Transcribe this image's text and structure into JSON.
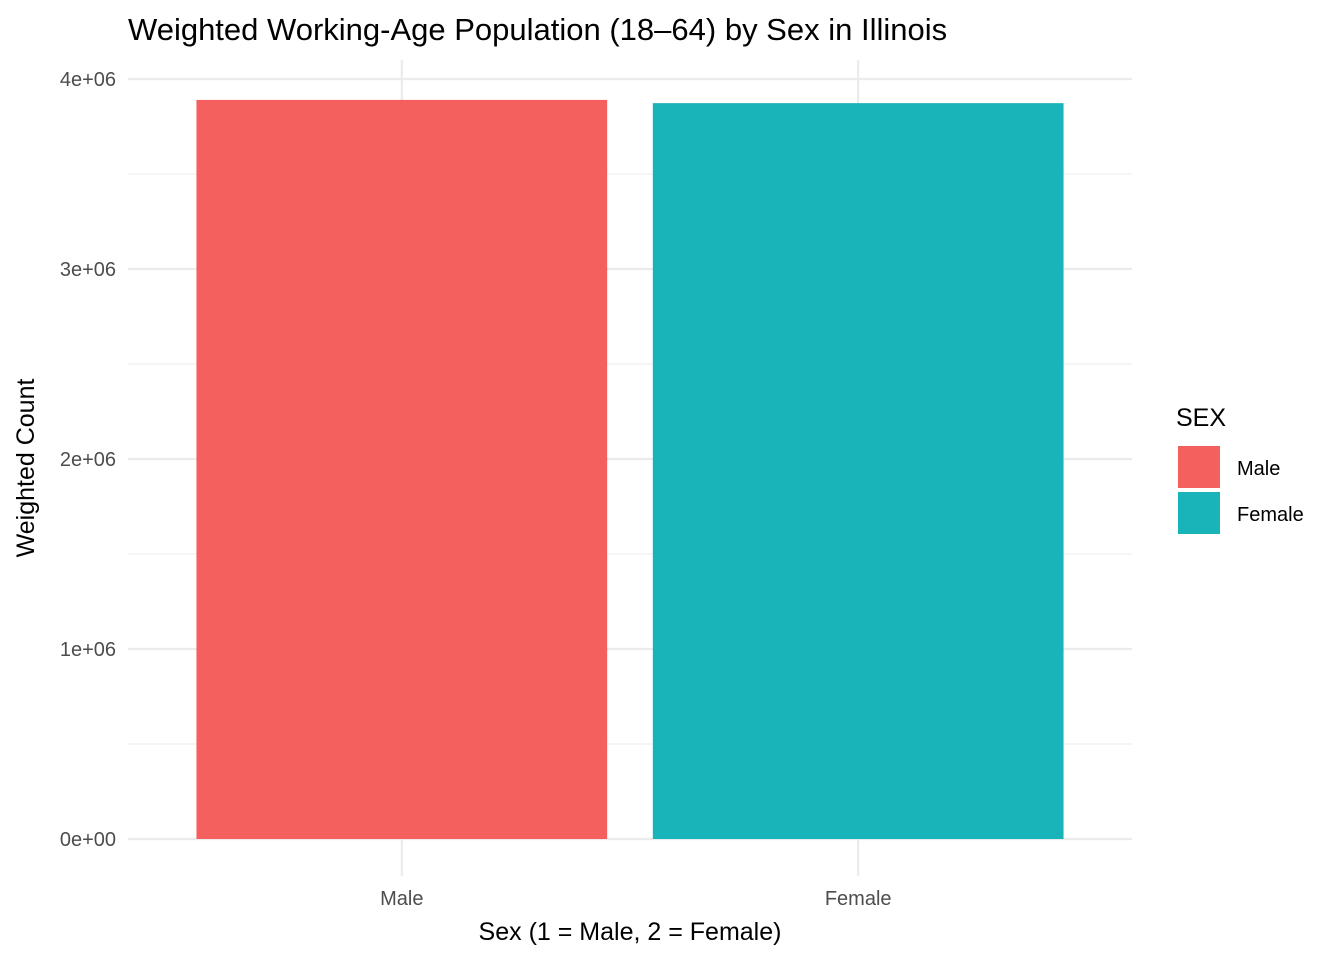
{
  "chart_data": {
    "type": "bar",
    "title": "Weighted Working-Age Population (18–64) by Sex in Illinois",
    "xlabel": "Sex (1 = Male, 2 = Female)",
    "ylabel": "Weighted Count",
    "categories": [
      "Male",
      "Female"
    ],
    "values": [
      3890000,
      3873000
    ],
    "colors": [
      "#F4605E",
      "#19B4B9"
    ],
    "ylim": [
      0,
      4000000
    ],
    "y_ticks": [
      0,
      1000000,
      2000000,
      3000000,
      4000000
    ],
    "y_tick_labels": [
      "0e+00",
      "1e+06",
      "2e+06",
      "3e+06",
      "4e+06"
    ],
    "grid": true,
    "legend": {
      "title": "SEX",
      "position": "right",
      "entries": [
        "Male",
        "Female"
      ]
    }
  }
}
